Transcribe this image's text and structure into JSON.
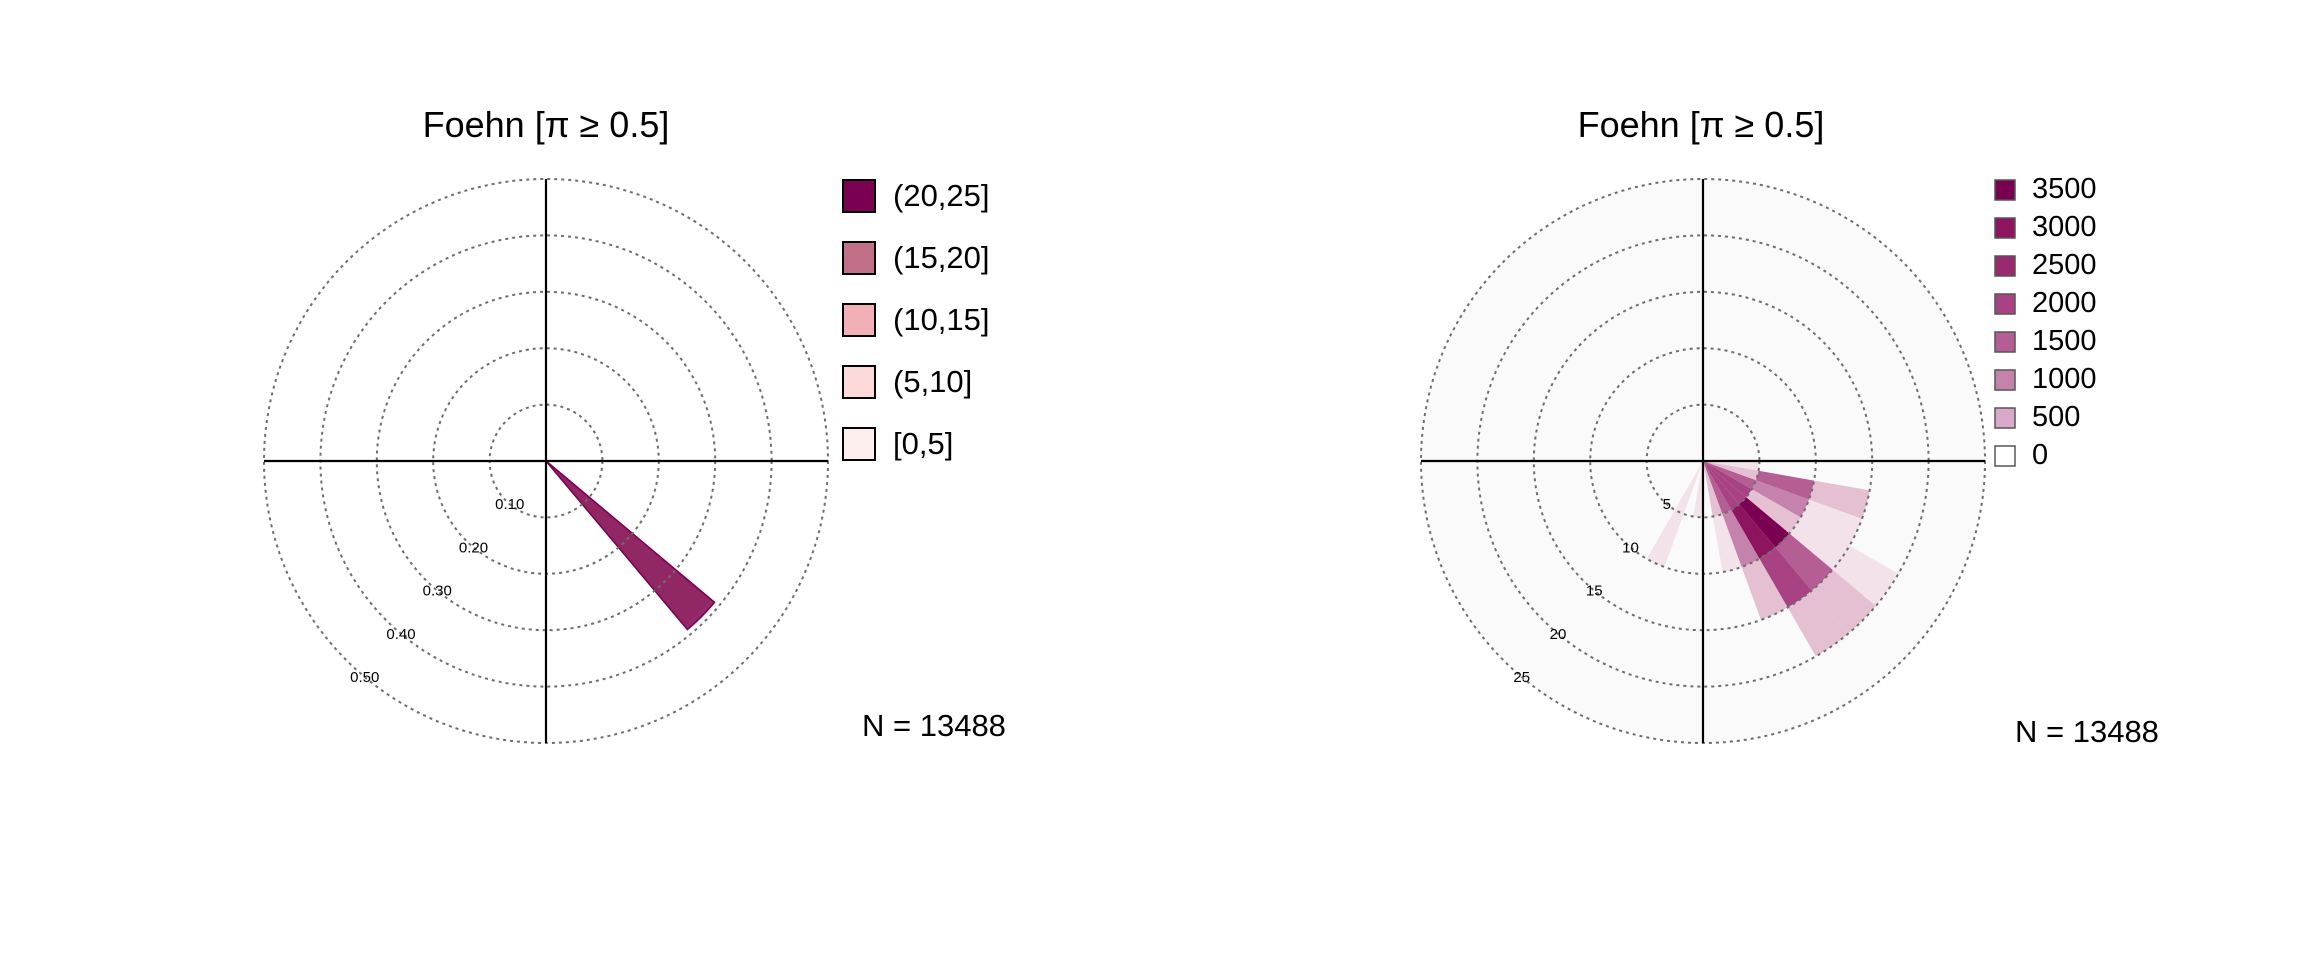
{
  "chart_data": [
    {
      "type": "polar-windrose",
      "title": "Foehn [π ≥ 0.5]",
      "radial_ticks": [
        "0.10",
        "0.20",
        "0.30",
        "0.40",
        "0.50"
      ],
      "radial_tick_values": [
        0.1,
        0.2,
        0.3,
        0.4,
        0.5
      ],
      "rmax": 0.5,
      "n_label": "N = 13488",
      "direction_unit": "degrees",
      "legend": {
        "placement": "right",
        "items": [
          {
            "label": "(20,25]",
            "color": "#7a0152"
          },
          {
            "label": "(15,20]",
            "color": "#c27088"
          },
          {
            "label": "(10,15]",
            "color": "#f0b0b6"
          },
          {
            "label": "(5,10]",
            "color": "#fcdada"
          },
          {
            "label": "[0,5]",
            "color": "#fdefee"
          }
        ]
      },
      "series": [
        {
          "name": "[0,5]",
          "color": "#fdefee",
          "values": [
            {
              "direction": 135,
              "frequency": 0.0
            }
          ]
        },
        {
          "name": "(5,10]",
          "color": "#fcdada",
          "values": [
            {
              "direction": 135,
              "frequency": 0.13
            }
          ]
        },
        {
          "name": "(10,15]",
          "color": "#f0b0b6",
          "values": [
            {
              "direction": 135,
              "frequency": 0.38
            }
          ]
        },
        {
          "name": "(15,20]",
          "color": "#c27088",
          "values": [
            {
              "direction": 135,
              "frequency": 0.39
            }
          ]
        },
        {
          "name": "(20,25]",
          "color": "#7a0152",
          "values": [
            {
              "direction": 135,
              "frequency": 0.39
            }
          ]
        }
      ]
    },
    {
      "type": "polar-heatmap",
      "title": "Foehn [π ≥ 0.5]",
      "radial_ticks": [
        "5",
        "10",
        "15",
        "20",
        "25"
      ],
      "radial_tick_values": [
        5,
        10,
        15,
        20,
        25
      ],
      "rmax": 25,
      "n_label": "N = 13488",
      "direction_bin_width": 10,
      "speed_bin_width": 5,
      "legend": {
        "placement": "right",
        "items": [
          {
            "label": "3500",
            "color": "#7a0152"
          },
          {
            "label": "3000",
            "color": "#8e1460"
          },
          {
            "label": "2500",
            "color": "#9a2a70"
          },
          {
            "label": "2000",
            "color": "#a84282"
          },
          {
            "label": "1500",
            "color": "#b45e94"
          },
          {
            "label": "1000",
            "color": "#c482ad"
          },
          {
            "label": "500",
            "color": "#d8a9c8"
          },
          {
            "label": "0",
            "color": "#ffffff"
          }
        ]
      },
      "colorscale": [
        {
          "value": 0,
          "color": "#fafafa"
        },
        {
          "value": 200,
          "color": "#f3e2ea"
        },
        {
          "value": 500,
          "color": "#e4c0d2"
        },
        {
          "value": 1000,
          "color": "#c482ad"
        },
        {
          "value": 1500,
          "color": "#b45e94"
        },
        {
          "value": 2000,
          "color": "#a84282"
        },
        {
          "value": 2500,
          "color": "#9a2a70"
        },
        {
          "value": 3000,
          "color": "#8e1460"
        },
        {
          "value": 3500,
          "color": "#7a0152"
        }
      ],
      "cells": [
        {
          "dir": [
            60,
            70
          ],
          "speed": [
            10,
            15
          ],
          "count": 40
        },
        {
          "dir": [
            60,
            70
          ],
          "speed": [
            15,
            20
          ],
          "count": 60
        },
        {
          "dir": [
            60,
            70
          ],
          "speed": [
            20,
            25
          ],
          "count": 40
        },
        {
          "dir": [
            90,
            100
          ],
          "speed": [
            0,
            5
          ],
          "count": 300
        },
        {
          "dir": [
            100,
            110
          ],
          "speed": [
            0,
            5
          ],
          "count": 800
        },
        {
          "dir": [
            100,
            110
          ],
          "speed": [
            5,
            10
          ],
          "count": 1800
        },
        {
          "dir": [
            100,
            110
          ],
          "speed": [
            10,
            15
          ],
          "count": 500
        },
        {
          "dir": [
            110,
            120
          ],
          "speed": [
            0,
            5
          ],
          "count": 1500
        },
        {
          "dir": [
            110,
            120
          ],
          "speed": [
            5,
            10
          ],
          "count": 1000
        },
        {
          "dir": [
            110,
            120
          ],
          "speed": [
            10,
            15
          ],
          "count": 400
        },
        {
          "dir": [
            110,
            120
          ],
          "speed": [
            15,
            20
          ],
          "count": 150
        },
        {
          "dir": [
            120,
            130
          ],
          "speed": [
            0,
            5
          ],
          "count": 2200
        },
        {
          "dir": [
            120,
            130
          ],
          "speed": [
            5,
            10
          ],
          "count": 800
        },
        {
          "dir": [
            120,
            130
          ],
          "speed": [
            10,
            15
          ],
          "count": 300
        },
        {
          "dir": [
            120,
            130
          ],
          "speed": [
            15,
            20
          ],
          "count": 200
        },
        {
          "dir": [
            130,
            140
          ],
          "speed": [
            0,
            5
          ],
          "count": 2400
        },
        {
          "dir": [
            130,
            140
          ],
          "speed": [
            5,
            10
          ],
          "count": 3500
        },
        {
          "dir": [
            130,
            140
          ],
          "speed": [
            10,
            15
          ],
          "count": 1600
        },
        {
          "dir": [
            130,
            140
          ],
          "speed": [
            15,
            20
          ],
          "count": 600
        },
        {
          "dir": [
            130,
            140
          ],
          "speed": [
            20,
            25
          ],
          "count": 100
        },
        {
          "dir": [
            140,
            150
          ],
          "speed": [
            0,
            5
          ],
          "count": 2000
        },
        {
          "dir": [
            140,
            150
          ],
          "speed": [
            5,
            10
          ],
          "count": 3000
        },
        {
          "dir": [
            140,
            150
          ],
          "speed": [
            10,
            15
          ],
          "count": 2000
        },
        {
          "dir": [
            140,
            150
          ],
          "speed": [
            15,
            20
          ],
          "count": 500
        },
        {
          "dir": [
            140,
            150
          ],
          "speed": [
            20,
            25
          ],
          "count": 100
        },
        {
          "dir": [
            150,
            160
          ],
          "speed": [
            0,
            5
          ],
          "count": 1500
        },
        {
          "dir": [
            150,
            160
          ],
          "speed": [
            5,
            10
          ],
          "count": 1200
        },
        {
          "dir": [
            150,
            160
          ],
          "speed": [
            10,
            15
          ],
          "count": 600
        },
        {
          "dir": [
            150,
            160
          ],
          "speed": [
            15,
            20
          ],
          "count": 150
        },
        {
          "dir": [
            160,
            170
          ],
          "speed": [
            0,
            5
          ],
          "count": 500
        },
        {
          "dir": [
            160,
            170
          ],
          "speed": [
            5,
            10
          ],
          "count": 300
        },
        {
          "dir": [
            160,
            170
          ],
          "speed": [
            10,
            15
          ],
          "count": 100
        },
        {
          "dir": [
            180,
            190
          ],
          "speed": [
            0,
            5
          ],
          "count": 300
        },
        {
          "dir": [
            180,
            190
          ],
          "speed": [
            5,
            10
          ],
          "count": 150
        },
        {
          "dir": [
            200,
            210
          ],
          "speed": [
            0,
            5
          ],
          "count": 200
        },
        {
          "dir": [
            200,
            210
          ],
          "speed": [
            5,
            10
          ],
          "count": 300
        },
        {
          "dir": [
            200,
            210
          ],
          "speed": [
            10,
            15
          ],
          "count": 150
        },
        {
          "dir": [
            200,
            210
          ],
          "speed": [
            15,
            20
          ],
          "count": 80
        },
        {
          "dir": [
            210,
            220
          ],
          "speed": [
            5,
            10
          ],
          "count": 100
        },
        {
          "dir": [
            210,
            220
          ],
          "speed": [
            10,
            15
          ],
          "count": 150
        },
        {
          "dir": [
            210,
            220
          ],
          "speed": [
            15,
            20
          ],
          "count": 100
        },
        {
          "dir": [
            210,
            220
          ],
          "speed": [
            20,
            25
          ],
          "count": 60
        }
      ]
    }
  ]
}
